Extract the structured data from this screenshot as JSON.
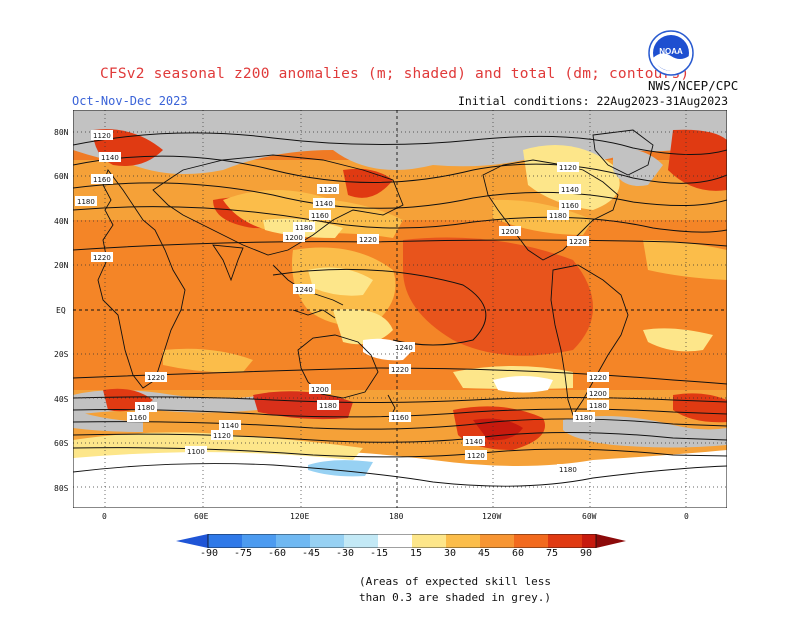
{
  "header": {
    "title": "CFSv2 seasonal z200 anomalies (m; shaded) and total (dm; contours)",
    "season": "Oct-Nov-Dec 2023",
    "initial_conditions": "Initial conditions: 22Aug2023-31Aug2023",
    "agency": "NWS/NCEP/CPC",
    "logo_text": "NOAA"
  },
  "map": {
    "lat_labels": [
      "80N",
      "60N",
      "40N",
      "20N",
      "EQ",
      "20S",
      "40S",
      "60S",
      "80S"
    ],
    "lon_labels": [
      "0",
      "60E",
      "120E",
      "180",
      "120W",
      "60W",
      "0"
    ],
    "contour_labels": [
      "1120",
      "1140",
      "1160",
      "1180",
      "1200",
      "1220",
      "1240",
      "1100"
    ]
  },
  "colorbar": {
    "ticks": [
      "-90",
      "-75",
      "-60",
      "-45",
      "-30",
      "-15",
      "15",
      "30",
      "45",
      "60",
      "75",
      "90"
    ],
    "colors": [
      "#1f55d6",
      "#2f79e8",
      "#4c9bf0",
      "#6fb8f2",
      "#97d1f3",
      "#c3e9f6",
      "#ffffff",
      "#fde68a",
      "#fbbd4a",
      "#f79533",
      "#f26a1e",
      "#e03a12",
      "#c71a0e",
      "#8c0a0a"
    ]
  },
  "footnote": {
    "line1": "(Areas of expected skill less",
    "line2": "than 0.3 are shaded in grey.)"
  }
}
